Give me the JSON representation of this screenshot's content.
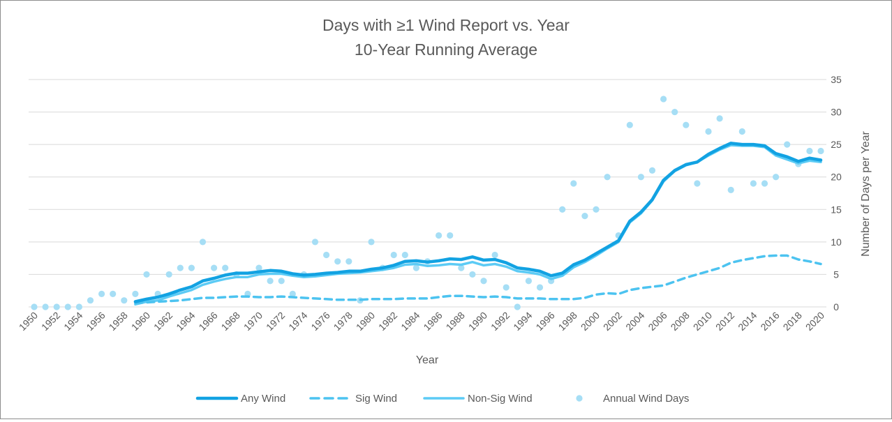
{
  "chart_data": {
    "type": "line",
    "title": "Days with ≥1 Wind Report vs. Year",
    "subtitle": "10-Year Running Average",
    "xlabel": "Year",
    "ylabel": "Number of Days per Year",
    "xlim": [
      1950,
      2020
    ],
    "ylim": [
      0,
      35
    ],
    "y_ticks": [
      0,
      5,
      10,
      15,
      20,
      25,
      30,
      35
    ],
    "x_tick_labels": [
      "1950",
      "1952",
      "1954",
      "1956",
      "1958",
      "1960",
      "1962",
      "1964",
      "1966",
      "1968",
      "1970",
      "1972",
      "1974",
      "1976",
      "1978",
      "1980",
      "1982",
      "1984",
      "1986",
      "1988",
      "1990",
      "1992",
      "1994",
      "1996",
      "1998",
      "2000",
      "2002",
      "2004",
      "2006",
      "2008",
      "2010",
      "2012",
      "2014",
      "2016",
      "2018",
      "2020"
    ],
    "y_axis_position": "right",
    "grid": true,
    "legend_position": "bottom",
    "colors": {
      "any": "#12a2e2",
      "sig": "#4cc3f0",
      "nonsig": "#5ccbf5",
      "annual": "#a6def5"
    },
    "series": [
      {
        "name": "Any Wind",
        "style": "solid-thick",
        "x": [
          1959,
          1960,
          1961,
          1962,
          1963,
          1964,
          1965,
          1966,
          1967,
          1968,
          1969,
          1970,
          1971,
          1972,
          1973,
          1974,
          1975,
          1976,
          1977,
          1978,
          1979,
          1980,
          1981,
          1982,
          1983,
          1984,
          1985,
          1986,
          1987,
          1988,
          1989,
          1990,
          1991,
          1992,
          1993,
          1994,
          1995,
          1996,
          1997,
          1998,
          1999,
          2000,
          2001,
          2002,
          2003,
          2004,
          2005,
          2006,
          2007,
          2008,
          2009,
          2010,
          2011,
          2012,
          2013,
          2014,
          2015,
          2016,
          2017,
          2018,
          2019,
          2020
        ],
        "values": [
          0.8,
          1.2,
          1.5,
          2.0,
          2.6,
          3.1,
          4.0,
          4.4,
          4.9,
          5.2,
          5.2,
          5.4,
          5.6,
          5.5,
          5.1,
          4.9,
          5.0,
          5.2,
          5.3,
          5.5,
          5.5,
          5.8,
          6.0,
          6.4,
          7.0,
          7.1,
          6.9,
          7.1,
          7.4,
          7.3,
          7.7,
          7.2,
          7.3,
          6.8,
          6.0,
          5.8,
          5.5,
          4.8,
          5.2,
          6.5,
          7.2,
          8.2,
          9.2,
          10.2,
          13.2,
          14.6,
          16.5,
          19.5,
          21.0,
          21.9,
          22.3,
          23.5,
          24.4,
          25.2,
          25.0,
          25.0,
          24.8,
          23.6,
          23.1,
          22.4,
          22.9,
          22.6
        ]
      },
      {
        "name": "Sig Wind",
        "style": "dashed",
        "x": [
          1959,
          1960,
          1961,
          1962,
          1963,
          1964,
          1965,
          1966,
          1967,
          1968,
          1969,
          1970,
          1971,
          1972,
          1973,
          1974,
          1975,
          1976,
          1977,
          1978,
          1979,
          1980,
          1981,
          1982,
          1983,
          1984,
          1985,
          1986,
          1987,
          1988,
          1989,
          1990,
          1991,
          1992,
          1993,
          1994,
          1995,
          1996,
          1997,
          1998,
          1999,
          2000,
          2001,
          2002,
          2003,
          2004,
          2005,
          2006,
          2007,
          2008,
          2009,
          2010,
          2011,
          2012,
          2013,
          2014,
          2015,
          2016,
          2017,
          2018,
          2019,
          2020
        ],
        "values": [
          0.6,
          0.7,
          0.8,
          0.9,
          1.0,
          1.2,
          1.4,
          1.4,
          1.5,
          1.6,
          1.6,
          1.5,
          1.5,
          1.6,
          1.5,
          1.4,
          1.3,
          1.2,
          1.1,
          1.1,
          1.1,
          1.2,
          1.2,
          1.2,
          1.3,
          1.3,
          1.3,
          1.5,
          1.7,
          1.7,
          1.6,
          1.5,
          1.6,
          1.5,
          1.3,
          1.3,
          1.3,
          1.2,
          1.2,
          1.2,
          1.4,
          1.9,
          2.1,
          2.0,
          2.6,
          2.9,
          3.1,
          3.3,
          3.9,
          4.5,
          5.0,
          5.5,
          6.0,
          6.8,
          7.2,
          7.5,
          7.8,
          7.9,
          7.9,
          7.3,
          7.0,
          6.6
        ]
      },
      {
        "name": "Non-Sig Wind",
        "style": "solid",
        "x": [
          1959,
          1960,
          1961,
          1962,
          1963,
          1964,
          1965,
          1966,
          1967,
          1968,
          1969,
          1970,
          1971,
          1972,
          1973,
          1974,
          1975,
          1976,
          1977,
          1978,
          1979,
          1980,
          1981,
          1982,
          1983,
          1984,
          1985,
          1986,
          1987,
          1988,
          1989,
          1990,
          1991,
          1992,
          1993,
          1994,
          1995,
          1996,
          1997,
          1998,
          1999,
          2000,
          2001,
          2002,
          2003,
          2004,
          2005,
          2006,
          2007,
          2008,
          2009,
          2010,
          2011,
          2012,
          2013,
          2014,
          2015,
          2016,
          2017,
          2018,
          2019,
          2020
        ],
        "values": [
          0.4,
          0.8,
          1.0,
          1.6,
          2.1,
          2.6,
          3.4,
          3.9,
          4.3,
          4.6,
          4.6,
          5.0,
          5.1,
          5.1,
          4.8,
          4.6,
          4.7,
          4.9,
          5.1,
          5.2,
          5.3,
          5.5,
          5.7,
          6.0,
          6.5,
          6.6,
          6.3,
          6.4,
          6.6,
          6.5,
          6.9,
          6.4,
          6.6,
          6.2,
          5.5,
          5.3,
          5.0,
          4.3,
          4.8,
          6.1,
          6.9,
          7.9,
          9.0,
          10.0,
          13.0,
          14.4,
          16.4,
          19.3,
          20.9,
          21.8,
          22.3,
          23.3,
          24.2,
          24.9,
          24.8,
          24.8,
          24.6,
          23.3,
          22.7,
          22.1,
          22.5,
          22.3
        ]
      },
      {
        "name": "Annual Wind Days",
        "style": "markers",
        "x": [
          1950,
          1951,
          1952,
          1953,
          1954,
          1955,
          1956,
          1957,
          1958,
          1959,
          1960,
          1961,
          1962,
          1963,
          1964,
          1965,
          1966,
          1967,
          1968,
          1969,
          1970,
          1971,
          1972,
          1973,
          1974,
          1975,
          1976,
          1977,
          1978,
          1979,
          1980,
          1981,
          1982,
          1983,
          1984,
          1985,
          1986,
          1987,
          1988,
          1989,
          1990,
          1991,
          1992,
          1993,
          1994,
          1995,
          1996,
          1997,
          1998,
          1999,
          2000,
          2001,
          2002,
          2003,
          2004,
          2005,
          2006,
          2007,
          2008,
          2009,
          2010,
          2011,
          2012,
          2013,
          2014,
          2015,
          2016,
          2017,
          2018,
          2019,
          2020
        ],
        "values": [
          0,
          0,
          0,
          0,
          0,
          1,
          2,
          2,
          1,
          2,
          5,
          2,
          5,
          6,
          6,
          10,
          6,
          6,
          5,
          2,
          6,
          4,
          4,
          2,
          5,
          10,
          8,
          7,
          7,
          1,
          10,
          6,
          8,
          8,
          6,
          7,
          11,
          11,
          6,
          5,
          4,
          8,
          3,
          0,
          4,
          3,
          4,
          15,
          19,
          14,
          15,
          20,
          11,
          28,
          20,
          21,
          32,
          30,
          28,
          19,
          27,
          29,
          18,
          27,
          19,
          19,
          20,
          25,
          22,
          24,
          24
        ]
      }
    ]
  }
}
